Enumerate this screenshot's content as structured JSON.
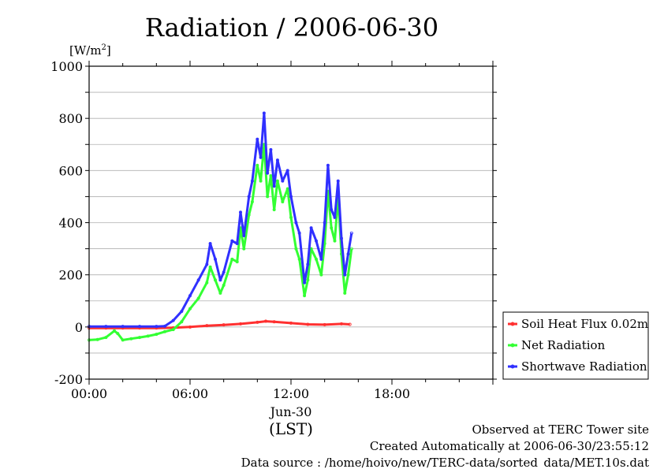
{
  "chart_data": {
    "type": "line",
    "title": "Radiation / 2006-06-30",
    "ylabel": "[W/m2]",
    "ylabel_base": "[W/m",
    "ylabel_sup": "2",
    "ylabel_close": "]",
    "xlabel_date": "Jun-30",
    "xlabel_tz": "(LST)",
    "ylim": [
      -200,
      1000
    ],
    "xlim": [
      0,
      24
    ],
    "yticks": [
      -200,
      0,
      200,
      400,
      600,
      800,
      1000
    ],
    "ytick_labels": [
      "-200",
      "0",
      "200",
      "400",
      "600",
      "800",
      "1000"
    ],
    "xticks": [
      0,
      6,
      12,
      18
    ],
    "xtick_labels": [
      "00:00",
      "06:00",
      "12:00",
      "18:00"
    ],
    "grid": true,
    "legend_position": "right",
    "series": [
      {
        "name": "Soil Heat Flux 0.02m",
        "color": "#ff3030",
        "x": [
          0,
          1,
          2,
          3,
          4,
          5,
          6,
          7,
          8,
          9,
          10,
          10.5,
          11,
          12,
          13,
          14,
          15,
          15.5
        ],
        "values": [
          -4,
          -4,
          -4,
          -4,
          -4,
          -3,
          0,
          5,
          8,
          12,
          18,
          22,
          20,
          15,
          10,
          9,
          12,
          10
        ]
      },
      {
        "name": "Net Radiation",
        "color": "#33ff33",
        "x": [
          0,
          0.5,
          1,
          1.5,
          1.7,
          2,
          2.5,
          3,
          3.5,
          4,
          4.5,
          5,
          5.5,
          6,
          6.5,
          7,
          7.2,
          7.5,
          7.8,
          8,
          8.5,
          8.8,
          9,
          9.2,
          9.5,
          9.7,
          10,
          10.2,
          10.4,
          10.6,
          10.8,
          11,
          11.2,
          11.5,
          11.8,
          12,
          12.3,
          12.5,
          12.8,
          13,
          13.2,
          13.5,
          13.8,
          14,
          14.2,
          14.4,
          14.6,
          14.8,
          15,
          15.2,
          15.4,
          15.6
        ],
        "values": [
          -50,
          -48,
          -40,
          -15,
          -25,
          -50,
          -45,
          -40,
          -35,
          -28,
          -18,
          -10,
          20,
          70,
          110,
          170,
          230,
          180,
          130,
          160,
          260,
          250,
          380,
          300,
          430,
          480,
          620,
          560,
          700,
          500,
          580,
          450,
          560,
          480,
          530,
          420,
          300,
          260,
          120,
          180,
          300,
          260,
          200,
          320,
          520,
          380,
          330,
          500,
          280,
          130,
          200,
          300
        ]
      },
      {
        "name": "Shortwave Radiation",
        "color": "#3030ff",
        "x": [
          0,
          1,
          2,
          3,
          4,
          4.5,
          5,
          5.5,
          6,
          6.5,
          7,
          7.2,
          7.5,
          7.8,
          8,
          8.5,
          8.8,
          9,
          9.2,
          9.5,
          9.7,
          10,
          10.2,
          10.4,
          10.6,
          10.8,
          11,
          11.2,
          11.5,
          11.8,
          12,
          12.3,
          12.5,
          12.8,
          13,
          13.2,
          13.5,
          13.8,
          14,
          14.2,
          14.4,
          14.6,
          14.8,
          15,
          15.2,
          15.4,
          15.6
        ],
        "values": [
          2,
          2,
          2,
          2,
          2,
          3,
          25,
          60,
          120,
          180,
          240,
          320,
          260,
          180,
          210,
          330,
          320,
          440,
          350,
          500,
          560,
          720,
          650,
          820,
          590,
          680,
          540,
          640,
          560,
          600,
          500,
          400,
          360,
          170,
          240,
          380,
          330,
          260,
          400,
          620,
          450,
          420,
          560,
          340,
          200,
          280,
          360
        ]
      }
    ]
  },
  "footer": {
    "line1": "Observed at TERC Tower site",
    "line2": "Created Automatically at 2006-06-30/23:55:12",
    "line3": "Data source : /home/hoivo/new/TERC-data/sorted_data/MET.10s.dat"
  }
}
